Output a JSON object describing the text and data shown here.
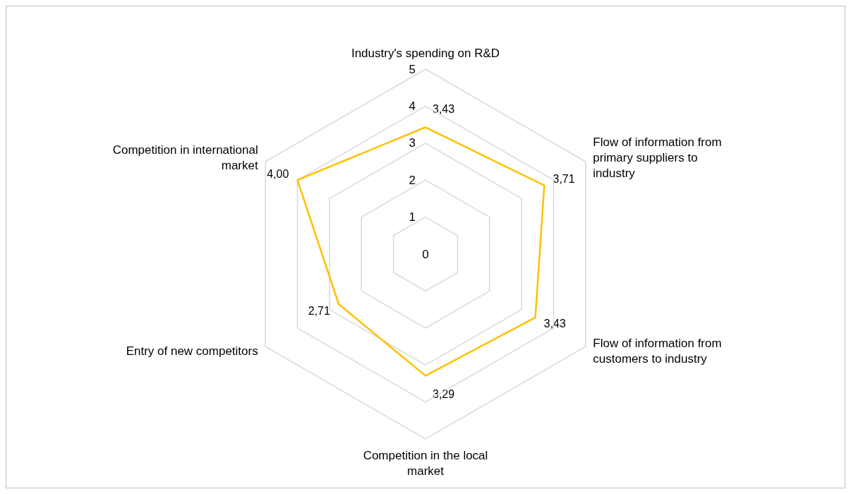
{
  "chart_data": {
    "type": "radar",
    "categories": [
      "Industry's spending on R&D",
      "Flow of information from primary suppliers to industry",
      "Flow of information from customers to industry",
      "Competition in the local market",
      "Entry of new competitors",
      "Competition in international market"
    ],
    "series": [
      {
        "color": "#ffc000",
        "values": [
          3.43,
          3.71,
          3.43,
          3.29,
          2.71,
          4.0
        ],
        "value_labels": [
          "3,43",
          "3,71",
          "3,43",
          "3,29",
          "2,71",
          "4,00"
        ]
      }
    ],
    "ylim": [
      0,
      5
    ],
    "yticks": [
      0,
      1,
      2,
      3,
      4,
      5
    ],
    "grid": true,
    "marker": "none",
    "line_style": "solid"
  }
}
